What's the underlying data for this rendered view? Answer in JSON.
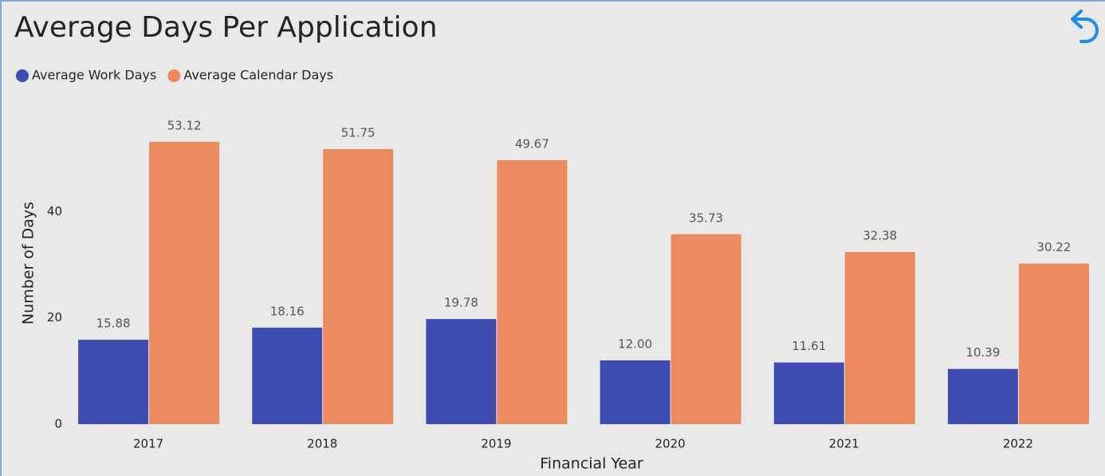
{
  "chart_data": {
    "type": "bar",
    "title": "Average Days Per Application",
    "x_label": "Financial Year",
    "y_label": "Number of Days",
    "categories": [
      "2017",
      "2018",
      "2019",
      "2020",
      "2021",
      "2022"
    ],
    "series": [
      {
        "name": "Average Work Days",
        "color": "#3f4db0",
        "values": [
          15.88,
          18.16,
          19.78,
          12.0,
          11.61,
          10.39
        ],
        "value_labels": [
          "15.88",
          "18.16",
          "19.78",
          "12.00",
          "11.61",
          "10.39"
        ]
      },
      {
        "name": "Average Calendar Days",
        "color": "#eb8a5f",
        "values": [
          53.12,
          51.75,
          49.67,
          35.73,
          32.38,
          30.22
        ],
        "value_labels": [
          "53.12",
          "51.75",
          "49.67",
          "35.73",
          "32.38",
          "30.22"
        ]
      }
    ],
    "ylim": [
      0,
      60
    ],
    "yticks": [
      0,
      20,
      40
    ],
    "grid": false,
    "legend": "top-left"
  }
}
